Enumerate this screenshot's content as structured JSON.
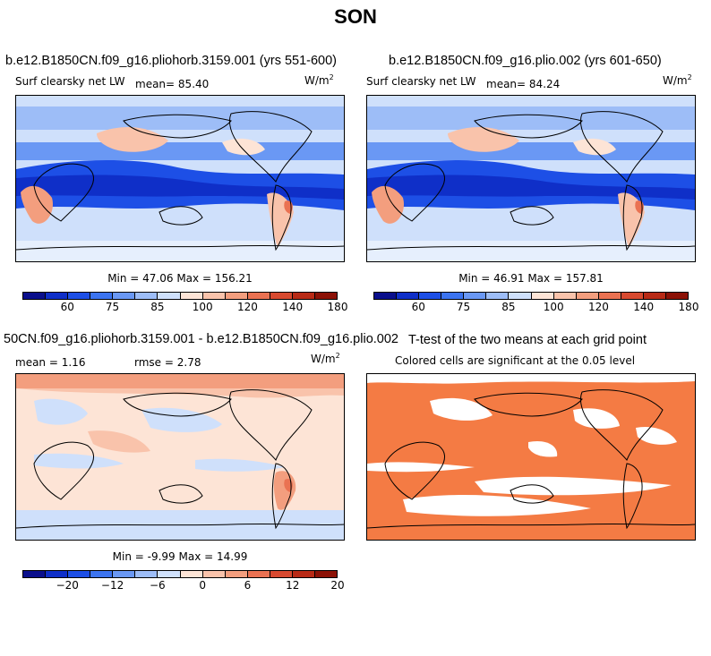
{
  "title": "SON",
  "panels": [
    {
      "title": "b.e12.B1850CN.f09_g16.pliohorb.3159.001 (yrs 551-600)",
      "variable": "Surf clearsky net LW",
      "mean_label": "mean=",
      "mean": "85.40",
      "units": "W/m",
      "units_exp": "2",
      "min_max": "Min =   47.06 Max =  156.21"
    },
    {
      "title": "b.e12.B1850CN.f09_g16.plio.002 (yrs 601-650)",
      "variable": "Surf clearsky net LW",
      "mean_label": "mean=",
      "mean": "84.24",
      "units": "W/m",
      "units_exp": "2",
      "min_max": "Min =   46.91 Max =  157.81"
    },
    {
      "title": "50CN.f09_g16.pliohorb.3159.001 - b.e12.B1850CN.f09_g16.plio.002",
      "mean_label": "mean =",
      "mean": "1.16",
      "rmse_label": "rmse =",
      "rmse": "2.78",
      "units": "W/m",
      "units_exp": "2",
      "min_max": "Min =   -9.99 Max =  14.99"
    },
    {
      "title": "T-test of the two means at each grid point",
      "subtitle": "Colored cells are significant at the 0.05 level"
    }
  ],
  "colorbar_abs": {
    "ticks": [
      "60",
      "75",
      "85",
      "100",
      "120",
      "140",
      "180"
    ],
    "colors": [
      "#0a0f8c",
      "#0f2fc8",
      "#1d4fe6",
      "#3c74f0",
      "#6a98f4",
      "#9dbdf7",
      "#cfe0fb",
      "#fde4d6",
      "#f9c3ab",
      "#f39e7e",
      "#ea7252",
      "#d84a30",
      "#b82a16",
      "#8c1106"
    ]
  },
  "colorbar_diff": {
    "ticks": [
      "−20",
      "−12",
      "−6",
      "0",
      "6",
      "12",
      "20"
    ],
    "colors": [
      "#0a0f8c",
      "#0f2fc8",
      "#1d4fe6",
      "#3c74f0",
      "#6a98f4",
      "#9dbdf7",
      "#cfe0fb",
      "#fde4d6",
      "#f9c3ab",
      "#f39e7e",
      "#ea7252",
      "#d84a30",
      "#b82a16",
      "#8c1106"
    ]
  }
}
